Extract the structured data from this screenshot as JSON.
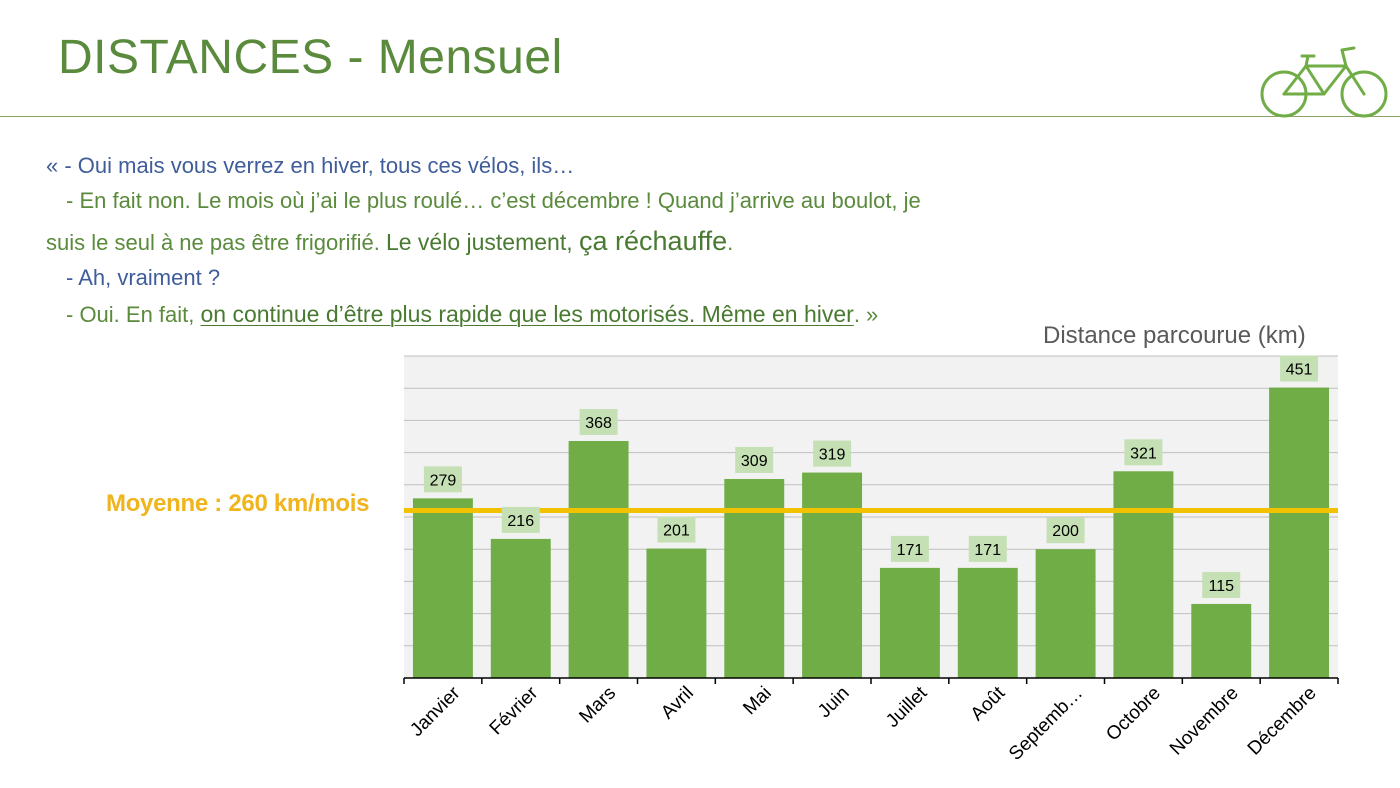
{
  "header": {
    "title": "DISTANCES - Mensuel",
    "icon": "bicycle-icon",
    "accent_color": "#5a8a3c"
  },
  "quote": {
    "line1": "« - Oui mais vous verrez en hiver, tous ces vélos, ils…",
    "line2": "- En fait non. Le mois où j’ai le plus roulé… c’est décembre ! Quand j’arrive au boulot, je",
    "line3_a": "suis le seul à ne pas être frigorifié. ",
    "line3_b": "Le vélo justement, ",
    "line3_c": "ça réchauffe",
    "line3_d": ".",
    "line4": "- Ah, vraiment ?",
    "line5_a": "- Oui. En fait, ",
    "line5_b": "on continue d’être plus rapide que les motorisés. Même en hiver",
    "line5_c": ". »",
    "blue_color": "#3f5d9a",
    "green_color": "#5a8a3c"
  },
  "average": {
    "label": "Moyenne : 260 km/mois",
    "value": 260,
    "color": "#f0b41c"
  },
  "chart_data": {
    "type": "bar",
    "title": "Distance parcourue (km)",
    "categories": [
      "Janvier",
      "Février",
      "Mars",
      "Avril",
      "Mai",
      "Juin",
      "Juillet",
      "Août",
      "Septemb…",
      "Octobre",
      "Novembre",
      "Décembre"
    ],
    "values": [
      279,
      216,
      368,
      201,
      309,
      319,
      171,
      171,
      200,
      321,
      115,
      451
    ],
    "ylim": [
      0,
      500
    ],
    "grid": true,
    "bar_color": "#70ad47",
    "label_bg_color": "#c5e0b4",
    "plot_bg_color": "#f2f2f2"
  }
}
